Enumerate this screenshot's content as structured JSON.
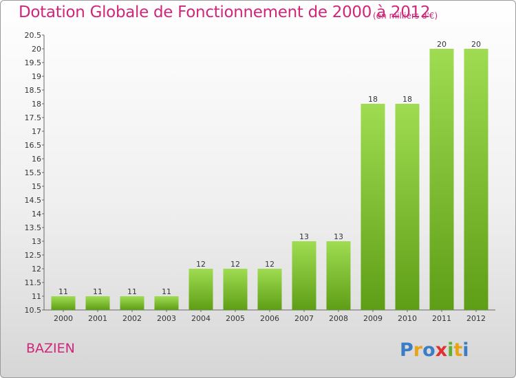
{
  "title": "Dotation Globale de Fonctionnement de 2000 à 2012",
  "unit": "(en milliers d'€)",
  "commune": "BAZIEN",
  "logo_text": "Proxiti",
  "colors": {
    "accent": "#d0267a",
    "bar_top": "#9fdc52",
    "bar_bottom": "#5e9e16"
  },
  "chart_data": {
    "type": "bar",
    "categories": [
      "2000",
      "2001",
      "2002",
      "2003",
      "2004",
      "2005",
      "2006",
      "2007",
      "2008",
      "2009",
      "2010",
      "2011",
      "2012"
    ],
    "values": [
      11,
      11,
      11,
      11,
      12,
      12,
      12,
      13,
      13,
      18,
      18,
      20,
      20
    ],
    "ylim": [
      10.5,
      20.5
    ],
    "yticks": [
      "10.5",
      "11",
      "11.5",
      "12",
      "12.5",
      "13",
      "13.5",
      "14",
      "14.5",
      "15",
      "15.5",
      "16",
      "16.5",
      "17",
      "17.5",
      "18",
      "18.5",
      "19",
      "19.5",
      "20",
      "20.5"
    ],
    "grid": false,
    "legend": "none"
  }
}
